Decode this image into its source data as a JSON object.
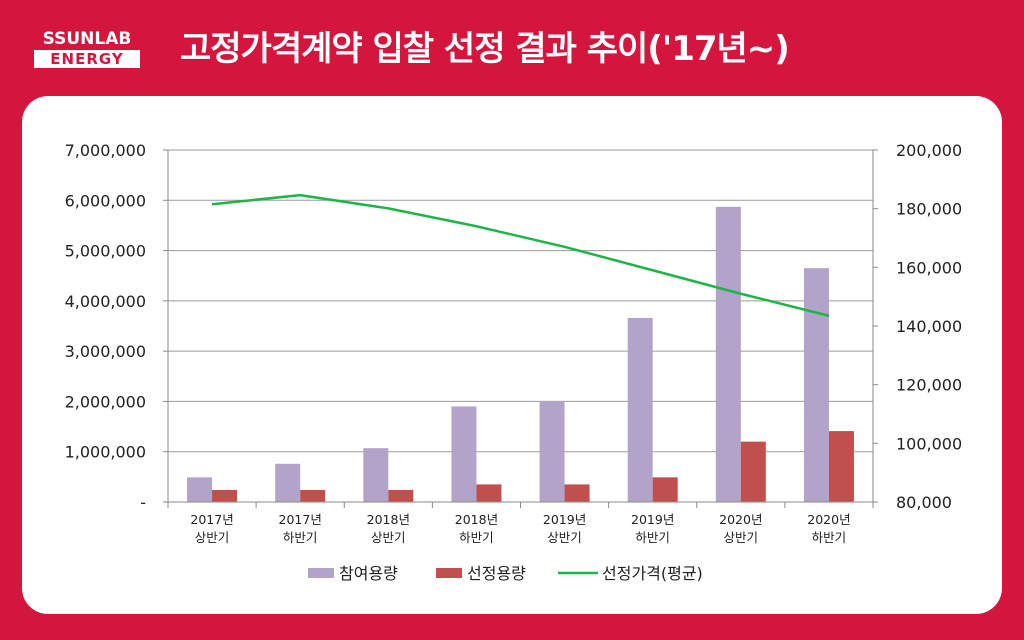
{
  "header": {
    "logo_line1": "SSUNLAB",
    "logo_line2": "ENERGY",
    "title": "고정가격계약 입찰 선정 결과 추이('17년~)"
  },
  "colors": {
    "background": "#d4163f",
    "participation": "#b2a3c9",
    "selection": "#c0504d",
    "price": "#1eb548"
  },
  "chart_data": {
    "type": "bar",
    "categories": [
      [
        "2017년",
        "상반기"
      ],
      [
        "2017년",
        "하반기"
      ],
      [
        "2018년",
        "상반기"
      ],
      [
        "2018년",
        "하반기"
      ],
      [
        "2019년",
        "상반기"
      ],
      [
        "2019년",
        "하반기"
      ],
      [
        "2020년",
        "상반기"
      ],
      [
        "2020년",
        "하반기"
      ]
    ],
    "series": [
      {
        "name": "참여용량",
        "type": "bar",
        "axis": "left",
        "values": [
          490000,
          760000,
          1070000,
          1900000,
          2010000,
          3660000,
          5870000,
          4650000
        ]
      },
      {
        "name": "선정용량",
        "type": "bar",
        "axis": "left",
        "values": [
          240000,
          240000,
          240000,
          350000,
          350000,
          490000,
          1200000,
          1410000
        ]
      },
      {
        "name": "선정가격(평균)",
        "type": "line",
        "axis": "right",
        "values": [
          181500,
          184600,
          180100,
          174000,
          167000,
          159000,
          151000,
          143500
        ]
      }
    ],
    "y_left": {
      "ylim": [
        0,
        7000000
      ],
      "tick_labels": [
        "-",
        "1,000,000",
        "2,000,000",
        "3,000,000",
        "4,000,000",
        "5,000,000",
        "6,000,000",
        "7,000,000"
      ]
    },
    "y_right": {
      "ylim": [
        80000,
        200000
      ],
      "tick_labels": [
        "80,000",
        "100,000",
        "120,000",
        "140,000",
        "160,000",
        "180,000",
        "200,000"
      ]
    },
    "grid": true,
    "legend_position": "bottom"
  }
}
